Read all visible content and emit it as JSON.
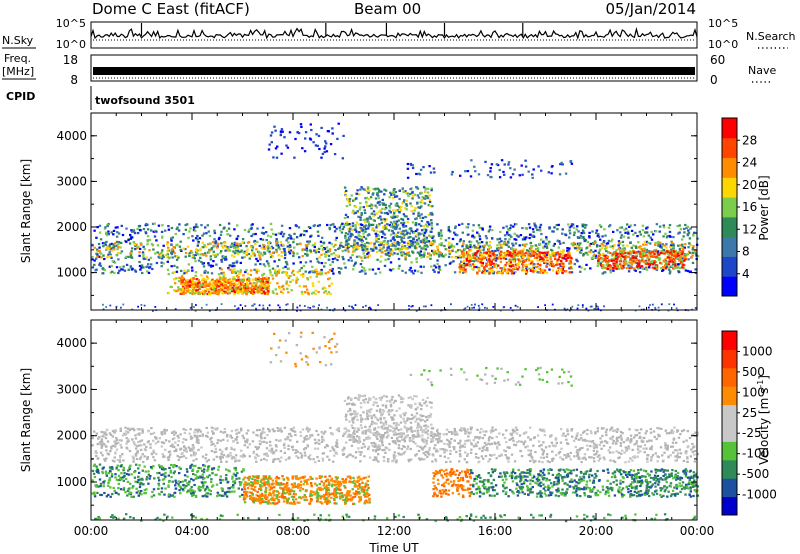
{
  "header": {
    "station": "Dome C East (fitACF)",
    "beam": "Beam 00",
    "date": "05/Jan/2014"
  },
  "nsky_panel": {
    "left_label": "N.Sky",
    "right_label": "N.Search",
    "top_tick": "10^5",
    "bottom_tick": "10^0"
  },
  "freq_panel": {
    "label_line1": "Freq.",
    "label_line2": "[MHz]",
    "left_ticks": [
      "18",
      "8"
    ],
    "right_label": "Nave",
    "right_ticks": [
      "60",
      "0"
    ]
  },
  "cpid_panel": {
    "label": "CPID",
    "program": "twofsound 3501"
  },
  "colors": {
    "power_scale": [
      "#0000ff",
      "#1e46c8",
      "#3c78aa",
      "#2e8b57",
      "#7ccd4c",
      "#ffd700",
      "#ff8c00",
      "#ff4500",
      "#ff0000"
    ],
    "velocity_scale": [
      "#0000cd",
      "#1e50a0",
      "#2e8b57",
      "#55c23a",
      "#c8c8c8",
      "#c8c8c8",
      "#ff8c00",
      "#ff6600",
      "#ff3300",
      "#ff0000"
    ],
    "ground_scatter": "#b4b4b4"
  },
  "chart_data": [
    {
      "type": "heatmap",
      "title": "Power",
      "xlabel": "",
      "ylabel": "Slant Range [km]",
      "x_range": [
        "00:00",
        "24:00"
      ],
      "y_range": [
        180,
        4500
      ],
      "y_ticks": [
        "4000",
        "3000",
        "2000",
        "1000"
      ],
      "colorbar": {
        "label": "Power [dB]",
        "ticks": [
          "28",
          "24",
          "20",
          "16",
          "12",
          "8",
          "4"
        ],
        "range": [
          0,
          30
        ]
      },
      "features": [
        {
          "name": "main band",
          "t_start": 0.0,
          "t_end": 24.0,
          "range_km": [
            1200,
            1900
          ],
          "power_db": [
            8,
            20
          ]
        },
        {
          "name": "strong echoes",
          "t_start": 3.5,
          "t_end": 7.0,
          "range_km": [
            550,
            900
          ],
          "power_db": [
            20,
            30
          ]
        },
        {
          "name": "strong echoes",
          "t_start": 14.5,
          "t_end": 19.0,
          "range_km": [
            1000,
            1500
          ],
          "power_db": [
            16,
            28
          ]
        },
        {
          "name": "strong echoes",
          "t_start": 20.0,
          "t_end": 23.5,
          "range_km": [
            1100,
            1500
          ],
          "power_db": [
            16,
            28
          ]
        },
        {
          "name": "arc",
          "t_start": 10.0,
          "t_end": 13.5,
          "range_km": [
            1500,
            2900
          ],
          "power_db": [
            4,
            24
          ]
        }
      ]
    },
    {
      "type": "heatmap",
      "title": "Velocity",
      "xlabel": "Time UT",
      "ylabel": "Slant Range [km]",
      "x_range": [
        "00:00",
        "24:00"
      ],
      "x_ticks": [
        "00:00",
        "04:00",
        "08:00",
        "12:00",
        "16:00",
        "20:00",
        "00:00"
      ],
      "y_range": [
        180,
        4500
      ],
      "y_ticks": [
        "4000",
        "3000",
        "2000",
        "1000"
      ],
      "colorbar": {
        "label": "Velocity [m s",
        "label_sup": "-1",
        "ticks": [
          "1000",
          "500",
          "100",
          "25",
          "-25",
          "-100",
          "-500",
          "-1000"
        ],
        "range": [
          -1000,
          1000
        ]
      },
      "features": [
        {
          "name": "ground scatter band",
          "t_start": 0.0,
          "t_end": 24.0,
          "range_km": [
            1500,
            2200
          ],
          "velocity": 0
        },
        {
          "name": "receding flow",
          "t_start": 6.0,
          "t_end": 11.0,
          "range_km": [
            550,
            1150
          ],
          "velocity": -150
        },
        {
          "name": "approaching flow",
          "t_start": 15.0,
          "t_end": 24.0,
          "range_km": [
            700,
            1300
          ],
          "velocity": 200
        }
      ]
    }
  ]
}
